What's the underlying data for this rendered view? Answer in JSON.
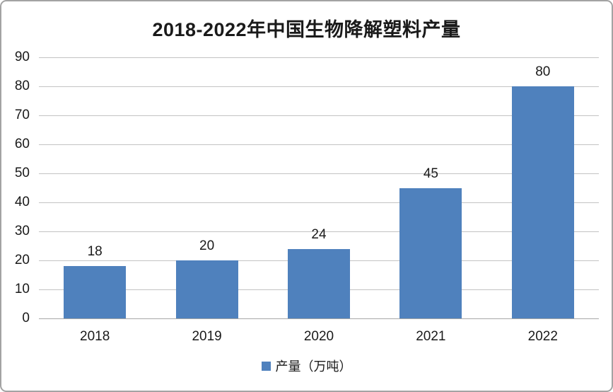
{
  "panel": {
    "background": "#ffffff",
    "border_color": "#a3a3a3"
  },
  "chart_data": {
    "type": "bar",
    "title": "2018-2022年中国生物降解塑料产量",
    "categories": [
      "2018",
      "2019",
      "2020",
      "2021",
      "2022"
    ],
    "series": [
      {
        "name": "产量（万吨）",
        "values": [
          18,
          20,
          24,
          45,
          80
        ],
        "color": "#4f81bd"
      }
    ],
    "data_labels": [
      "18",
      "20",
      "24",
      "45",
      "80"
    ],
    "xlabel": "",
    "ylabel": "",
    "ylim": [
      0,
      90
    ],
    "ytick_interval": 10,
    "yticks": [
      0,
      10,
      20,
      30,
      40,
      50,
      60,
      70,
      80,
      90
    ],
    "grid": "horizontal",
    "gridline_color": "#c3c3c3",
    "legend_position": "bottom"
  },
  "legend": {
    "label": "产量（万吨）",
    "marker_color": "#4f81bd",
    "marker_icon": "square-icon"
  }
}
